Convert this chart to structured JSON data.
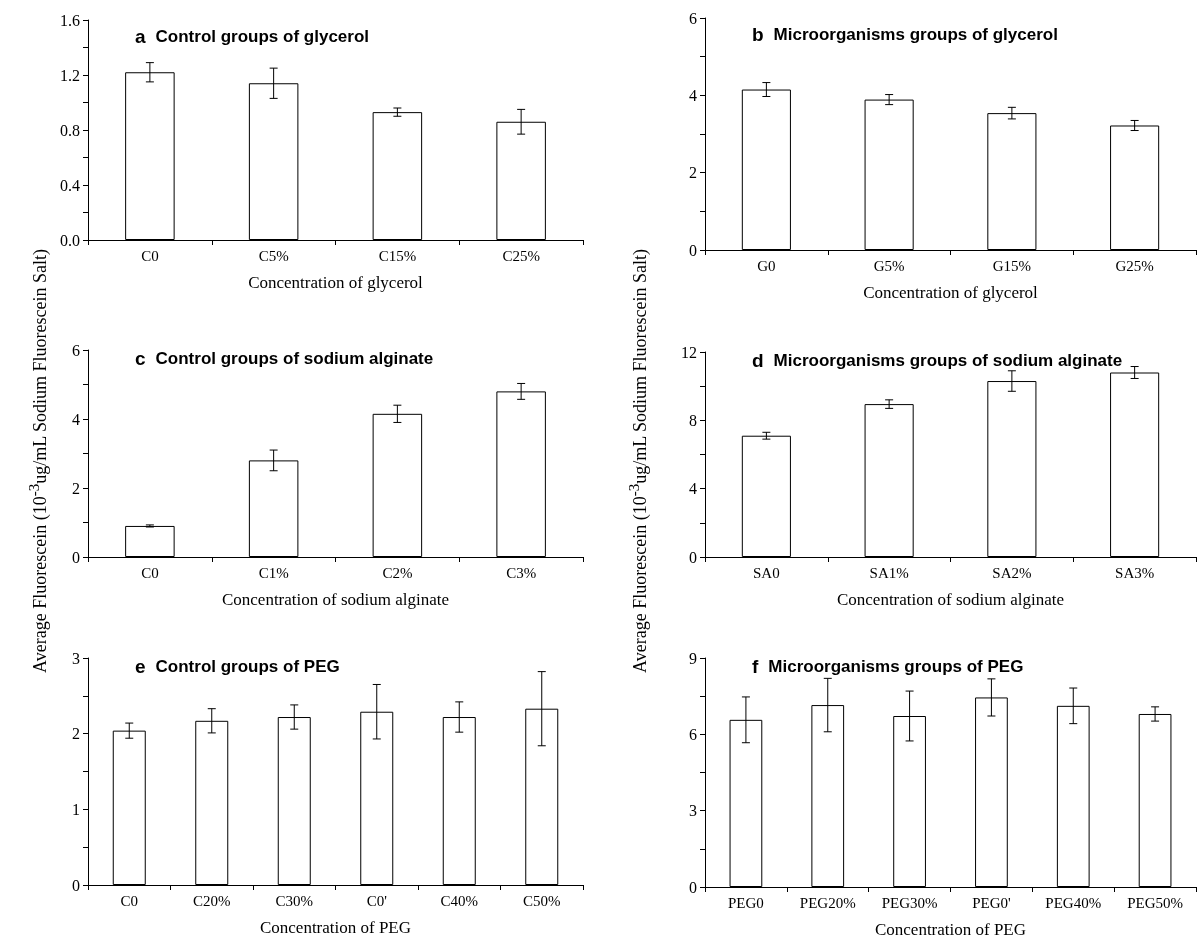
{
  "chart_data": [
    {
      "type": "bar",
      "title": "a Control groups of glycerol",
      "xlabel": "Concentration of glycerol",
      "categories": [
        "C0",
        "C5%",
        "C15%",
        "C25%"
      ],
      "values": [
        1.22,
        1.14,
        0.93,
        0.86
      ],
      "errors": [
        0.07,
        0.11,
        0.03,
        0.09
      ],
      "color": "#ffffff",
      "ylim": [
        0,
        1.6
      ],
      "yticks": [
        {
          "value": 0,
          "label": "0.0"
        },
        {
          "value": 0.2,
          "label": null
        },
        0.4,
        {
          "value": 0.6,
          "label": null
        },
        0.8,
        {
          "value": 1.0,
          "label": null
        },
        1.2,
        {
          "value": 1.4,
          "label": null
        },
        1.6
      ],
      "grid": false
    },
    {
      "type": "bar",
      "title": "b Microorganisms groups of glycerol",
      "xlabel": "Concentration of glycerol",
      "categories": [
        "G0",
        "G5%",
        "G15%",
        "G25%"
      ],
      "values": [
        4.15,
        3.89,
        3.54,
        3.22
      ],
      "errors": [
        0.18,
        0.13,
        0.15,
        0.13
      ],
      "color": "#ffffff",
      "ylim": [
        0,
        6
      ],
      "yticks": [
        0,
        {
          "value": 1,
          "label": null
        },
        2,
        {
          "value": 3,
          "label": null
        },
        4,
        {
          "value": 5,
          "label": null
        },
        6
      ],
      "grid": false
    },
    {
      "type": "bar",
      "title": "c Control groups of sodium alginate",
      "xlabel": "Concentration of sodium alginate",
      "ylabel": "Average Fluorescein (10$^{-3}$ug/mL Sodium Fluorescein Salt)",
      "categories": [
        "C0",
        "C1%",
        "C2%",
        "C3%"
      ],
      "values": [
        0.9,
        2.8,
        4.15,
        4.8
      ],
      "errors": [
        0.03,
        0.3,
        0.25,
        0.23
      ],
      "color": "#ffffff",
      "ylim": [
        0,
        6
      ],
      "yticks": [
        0,
        {
          "value": 1,
          "label": null
        },
        2,
        {
          "value": 3,
          "label": null
        },
        4,
        {
          "value": 5,
          "label": null
        },
        6
      ],
      "grid": false
    },
    {
      "type": "bar",
      "title": "d Microorganisms groups of sodium alginate",
      "xlabel": "Concentration of sodium alginate",
      "ylabel": "Average Fluorescein (10$^{-3}$ug/mL Sodium Fluorescein Salt)",
      "categories": [
        "SA0",
        "SA1%",
        "SA2%",
        "SA3%"
      ],
      "values": [
        7.1,
        8.95,
        10.3,
        10.8
      ],
      "errors": [
        0.2,
        0.25,
        0.6,
        0.35
      ],
      "color": "#ffffff",
      "ylim": [
        0,
        12
      ],
      "yticks": [
        0,
        {
          "value": 2,
          "label": null
        },
        4,
        {
          "value": 6,
          "label": null
        },
        8,
        {
          "value": 10,
          "label": null
        },
        12
      ],
      "grid": false
    },
    {
      "type": "bar",
      "title": "e Control groups of PEG",
      "xlabel": "Concentration of PEG",
      "categories": [
        "C0",
        "C20%",
        "C30%",
        "C0'",
        "C40%",
        "C50%"
      ],
      "values": [
        2.04,
        2.17,
        2.22,
        2.29,
        2.22,
        2.33
      ],
      "errors": [
        0.1,
        0.16,
        0.16,
        0.36,
        0.2,
        0.49
      ],
      "color": "#ffffff",
      "ylim": [
        0,
        3
      ],
      "yticks": [
        0,
        {
          "value": 0.5,
          "label": null
        },
        1,
        {
          "value": 1.5,
          "label": null
        },
        2,
        {
          "value": 2.5,
          "label": null
        },
        3
      ],
      "grid": false
    },
    {
      "type": "bar",
      "title": "f Microorganisms groups of PEG",
      "xlabel": "Concentration of PEG",
      "categories": [
        "PEG0",
        "PEG20%",
        "PEG30%",
        "PEG0'",
        "PEG40%",
        "PEG50%"
      ],
      "values": [
        6.57,
        7.15,
        6.72,
        7.45,
        7.12,
        6.8
      ],
      "errors": [
        0.9,
        1.05,
        0.98,
        0.73,
        0.7,
        0.28
      ],
      "color": "#ffffff",
      "ylim": [
        0,
        9
      ],
      "yticks": [
        0,
        {
          "value": 1.5,
          "label": null
        },
        3,
        {
          "value": 4.5,
          "label": null
        },
        6,
        {
          "value": 7.5,
          "label": null
        },
        9
      ],
      "grid": false
    }
  ]
}
